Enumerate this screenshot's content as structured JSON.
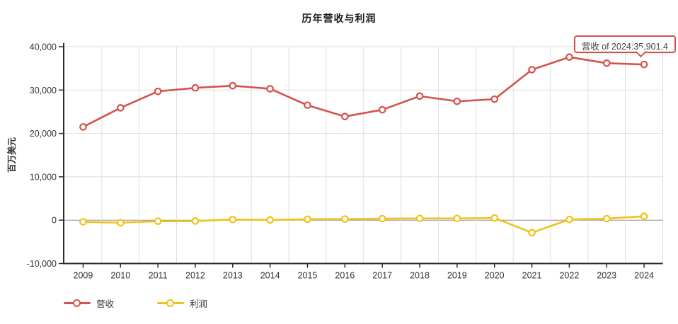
{
  "title": "历年营收与利润",
  "tooltip": {
    "text": "营收 of 2024:35,901.4",
    "border_color": "#d4524e"
  },
  "legend": [
    {
      "label": "营收",
      "color": "#d4524e"
    },
    {
      "label": "利润",
      "color": "#f0c21a"
    }
  ],
  "chart_data": {
    "type": "line",
    "title": "历年营收与利润",
    "xlabel": "",
    "ylabel": "百万美元",
    "categories": [
      "2009",
      "2010",
      "2011",
      "2012",
      "2013",
      "2014",
      "2015",
      "2016",
      "2017",
      "2018",
      "2019",
      "2020",
      "2021",
      "2022",
      "2023",
      "2024"
    ],
    "series": [
      {
        "id": "revenue",
        "name": "营收",
        "color": "#d4524e",
        "values": [
          21500,
          25900,
          29700,
          30500,
          31000,
          30300,
          26500,
          23900,
          25450,
          28600,
          27400,
          27900,
          34700,
          37600,
          36200,
          35901.4
        ]
      },
      {
        "id": "profit",
        "name": "利润",
        "color": "#f0c21a",
        "values": [
          -400,
          -600,
          -250,
          -200,
          150,
          50,
          200,
          250,
          350,
          400,
          400,
          500,
          -2900,
          150,
          350,
          900
        ]
      }
    ],
    "ylim": [
      -10000,
      40000
    ],
    "ytick_step": 10000,
    "grid": true,
    "zero_line": true,
    "legend_position": "bottom-left",
    "annotation": {
      "series": "营收",
      "category": "2024",
      "value": 35901.4,
      "label": "营收 of 2024:35,901.4"
    }
  }
}
